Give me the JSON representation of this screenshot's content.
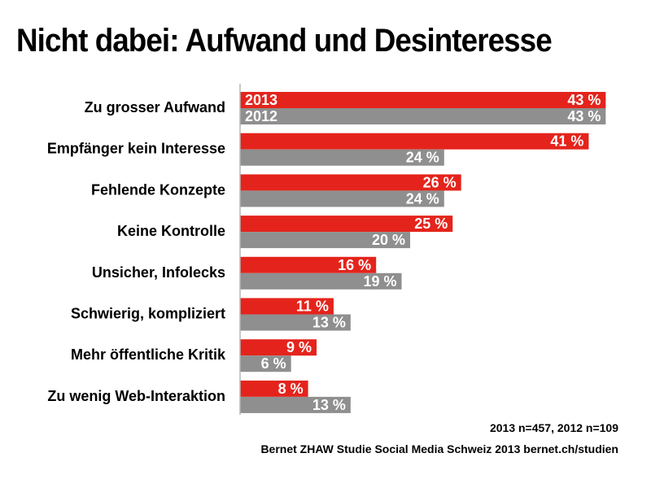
{
  "title": "Nicht dabei: Aufwand und Desinteresse",
  "colors": {
    "series_2013": "#e4241c",
    "series_2012": "#8f8f8f",
    "axis": "#b5b5b5"
  },
  "notes": {
    "sample_sizes": "2013 n=457, 2012 n=109",
    "source": "Bernet ZHAW Studie Social Media Schweiz 2013 bernet.ch/studien"
  },
  "chart_data": {
    "type": "bar",
    "orientation": "horizontal",
    "title": "Nicht dabei: Aufwand und Desinteresse",
    "categories": [
      "Zu grosser Aufwand",
      "Empfänger kein Interesse",
      "Fehlende Konzepte",
      "Keine Kontrolle",
      "Unsicher, Infolecks",
      "Schwierig, kompliziert",
      "Mehr öffentliche Kritik",
      "Zu wenig Web-Interaktion"
    ],
    "series": [
      {
        "name": "2013",
        "values": [
          43,
          41,
          26,
          25,
          16,
          11,
          9,
          8
        ],
        "labels": [
          "43 %",
          "41 %",
          "26 %",
          "25 %",
          "16 %",
          "11 %",
          "9 %",
          "8 %"
        ],
        "color": "#e4241c"
      },
      {
        "name": "2012",
        "values": [
          43,
          24,
          24,
          20,
          19,
          13,
          6,
          13
        ],
        "labels": [
          "43 %",
          "24 %",
          "24 %",
          "20 %",
          "19 %",
          "13 %",
          "6 %",
          "13 %"
        ],
        "color": "#8f8f8f"
      }
    ],
    "xlim": [
      0,
      45
    ],
    "grid": false,
    "legend": "inside first bars"
  }
}
